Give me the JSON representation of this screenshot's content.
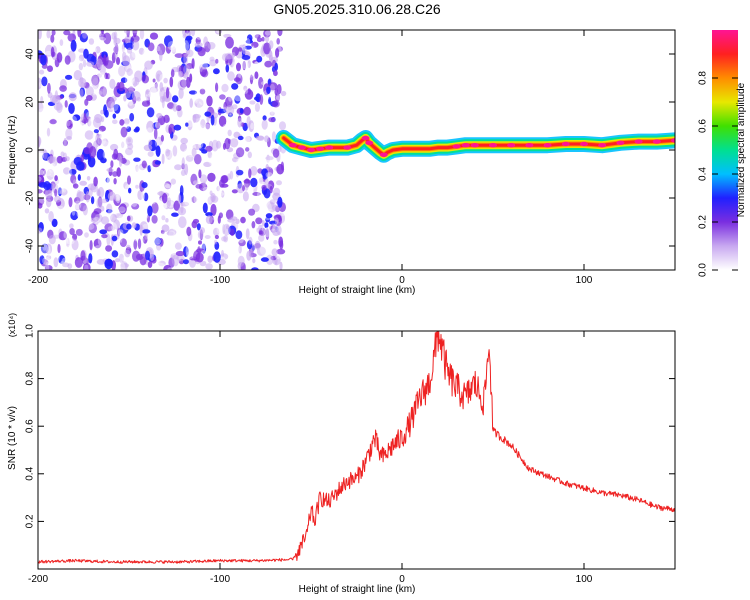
{
  "title": "GN05.2025.310.06.28.C26",
  "chart_data": [
    {
      "type": "heatmap",
      "xlabel": "Height of straight line (km)",
      "ylabel": "Frequency (Hz)",
      "xlim": [
        -200,
        150
      ],
      "ylim": [
        -50,
        50
      ],
      "xticks": [
        -200,
        -100,
        0,
        100
      ],
      "yticks": [
        -40,
        -20,
        0,
        20,
        40
      ],
      "colorbar": {
        "label": "Normalized spectral amplitude",
        "range": [
          0,
          1
        ],
        "ticks": [
          "0.0",
          "0.2",
          "0.4",
          "0.6",
          "0.8"
        ],
        "colormap": [
          "#ffffff",
          "#c8a8f0",
          "#7a2ee0",
          "#2020ff",
          "#00bfff",
          "#00e090",
          "#40e000",
          "#e8e800",
          "#ff8c00",
          "#ff2020",
          "#ff1493"
        ]
      },
      "noise_region": {
        "x": [
          -200,
          -65
        ],
        "amplitude": [
          0.0,
          0.3
        ]
      },
      "ridge": {
        "x": [
          -65,
          -60,
          -55,
          -50,
          -45,
          -40,
          -35,
          -30,
          -25,
          -22,
          -20,
          -18,
          -15,
          -12,
          -10,
          -8,
          -5,
          0,
          5,
          10,
          15,
          20,
          25,
          30,
          35,
          40,
          50,
          60,
          70,
          80,
          90,
          100,
          110,
          120,
          130,
          140,
          150
        ],
        "frequency": [
          5,
          2,
          1,
          0,
          0.5,
          1,
          1,
          1,
          2,
          4,
          5,
          3,
          1,
          -1,
          -2,
          -1,
          0,
          0.5,
          0.5,
          0.5,
          0.5,
          1,
          1,
          1.5,
          2,
          2,
          2,
          2,
          2,
          2,
          2.5,
          2.5,
          2,
          3,
          3.5,
          3.5,
          4
        ],
        "amplitude": [
          0.8,
          1,
          1,
          1,
          1,
          1,
          0.95,
          1,
          0.9,
          0.9,
          1,
          1,
          0.9,
          0.9,
          1,
          0.9,
          0.85,
          0.85,
          0.85,
          0.85,
          0.85,
          0.9,
          0.9,
          1,
          1,
          1,
          1,
          1,
          1,
          1,
          1,
          1,
          1,
          1,
          1,
          1,
          1
        ]
      }
    },
    {
      "type": "line",
      "xlabel": "Height of straight line (km)",
      "ylabel": "SNR (10 * v/v)",
      "multiplier_label": "(x10⁴)",
      "xlim": [
        -200,
        150
      ],
      "ylim": [
        0,
        1.0
      ],
      "xticks": [
        -200,
        -100,
        0,
        100
      ],
      "yticks": [
        0.2,
        0.4,
        0.6,
        0.8,
        1.0
      ],
      "color": "#ee2222",
      "series": [
        {
          "x": [
            -200,
            -180,
            -160,
            -140,
            -120,
            -100,
            -80,
            -60,
            -55,
            -52,
            -50,
            -48,
            -45,
            -40,
            -35,
            -30,
            -25,
            -20,
            -15,
            -12,
            -10,
            -5,
            0,
            5,
            10,
            15,
            18,
            20,
            25,
            30,
            35,
            40,
            45,
            48,
            50,
            55,
            60,
            65,
            70,
            80,
            90,
            100,
            110,
            120,
            130,
            140,
            150
          ],
          "values": [
            0.03,
            0.035,
            0.03,
            0.03,
            0.03,
            0.035,
            0.035,
            0.04,
            0.1,
            0.15,
            0.25,
            0.2,
            0.3,
            0.28,
            0.33,
            0.37,
            0.38,
            0.45,
            0.55,
            0.48,
            0.47,
            0.52,
            0.55,
            0.62,
            0.72,
            0.78,
            0.9,
            1.0,
            0.82,
            0.76,
            0.72,
            0.78,
            0.7,
            0.95,
            0.58,
            0.55,
            0.52,
            0.47,
            0.42,
            0.39,
            0.36,
            0.34,
            0.32,
            0.31,
            0.29,
            0.26,
            0.25
          ]
        }
      ]
    }
  ]
}
